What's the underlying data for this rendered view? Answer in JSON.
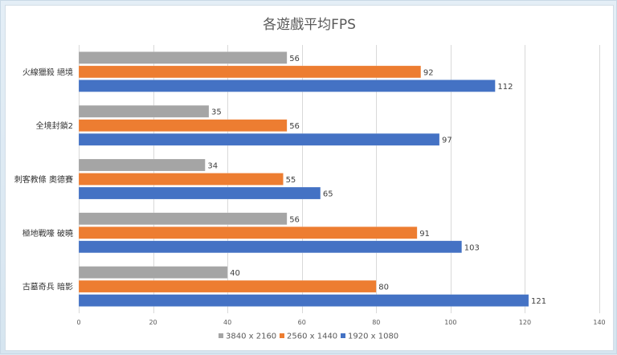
{
  "chart_data": {
    "type": "bar",
    "orientation": "horizontal",
    "title": "各遊戲平均FPS",
    "categories": [
      "火線獵殺 絕境",
      "全境封鎖2",
      "刺客教條 奧德賽",
      "極地戰嚎 破曉",
      "古墓奇兵 暗影"
    ],
    "series": [
      {
        "name": "3840 x 2160",
        "color": "#a5a5a5",
        "values": [
          56,
          35,
          34,
          56,
          40
        ]
      },
      {
        "name": "2560 x 1440",
        "color": "#ed7d31",
        "values": [
          92,
          56,
          55,
          91,
          80
        ]
      },
      {
        "name": "1920 x 1080",
        "color": "#4472c4",
        "values": [
          112,
          97,
          65,
          103,
          121
        ]
      }
    ],
    "xlim": [
      0,
      140
    ],
    "xticks": [
      0,
      20,
      40,
      60,
      80,
      100,
      120,
      140
    ],
    "grid": true,
    "legend_position": "bottom"
  }
}
